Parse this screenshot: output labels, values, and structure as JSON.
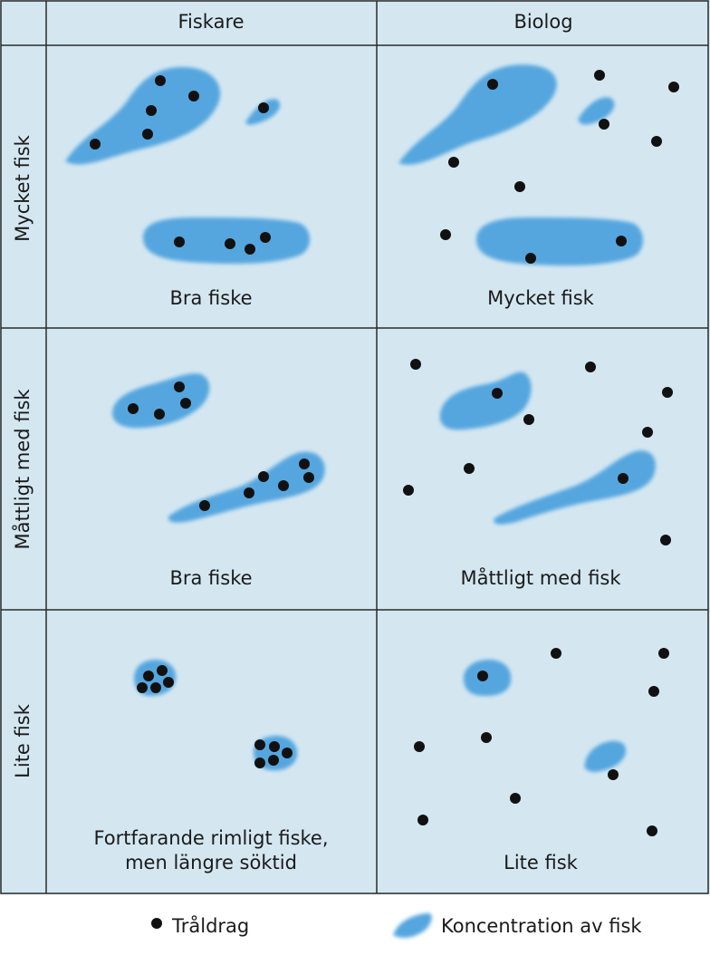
{
  "columns": {
    "fisherman": "Fiskare",
    "biologist": "Biolog"
  },
  "rows": {
    "much": "Mycket fisk",
    "moderate": "Måttligt med fisk",
    "little": "Lite fisk"
  },
  "cell_captions": {
    "much_fisherman": "Bra fiske",
    "much_biologist": "Mycket fisk",
    "moderate_fisherman": "Bra fiske",
    "moderate_biologist": "Måttligt med fisk",
    "little_fisherman_line1": "Fortfarande rimligt fiske,",
    "little_fisherman_line2": "men längre söktid",
    "little_biologist": "Lite fisk"
  },
  "legend": {
    "trawl": "Tråldrag",
    "concentration": "Koncentration av fisk"
  },
  "colors": {
    "cell_background": "#d4e7f1",
    "fish_concentration": "#55a6df",
    "trawl_dot": "#111111",
    "grid_lines": "#2a2a2a"
  }
}
